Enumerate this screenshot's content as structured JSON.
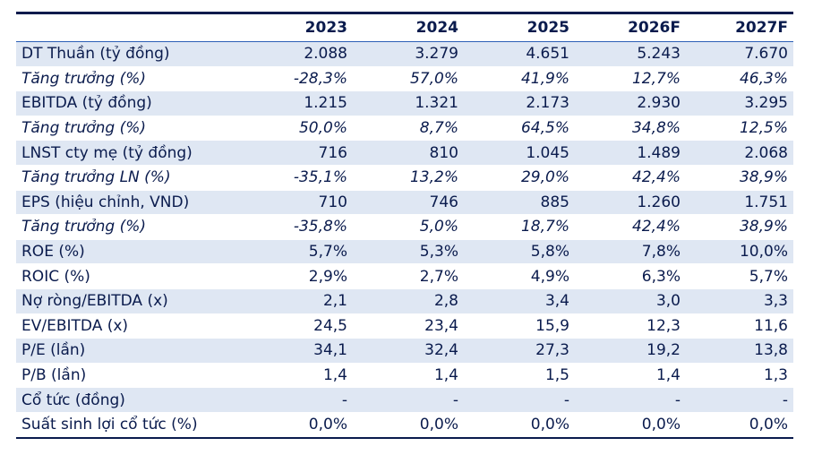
{
  "table": {
    "columns": [
      "",
      "2023",
      "2024",
      "2025",
      "2026F",
      "2027F"
    ],
    "rows": [
      {
        "label": "DT Thuần (tỷ đồng)",
        "values": [
          "2.088",
          "3.279",
          "4.651",
          "5.243",
          "7.670"
        ],
        "italic": false,
        "shaded": true
      },
      {
        "label": "Tăng trưởng (%)",
        "values": [
          "-28,3%",
          "57,0%",
          "41,9%",
          "12,7%",
          "46,3%"
        ],
        "italic": true,
        "shaded": false
      },
      {
        "label": "EBITDA (tỷ đồng)",
        "values": [
          "1.215",
          "1.321",
          "2.173",
          "2.930",
          "3.295"
        ],
        "italic": false,
        "shaded": true
      },
      {
        "label": "Tăng trưởng (%)",
        "values": [
          "50,0%",
          "8,7%",
          "64,5%",
          "34,8%",
          "12,5%"
        ],
        "italic": true,
        "shaded": false
      },
      {
        "label": "LNST cty mẹ (tỷ đồng)",
        "values": [
          "716",
          "810",
          "1.045",
          "1.489",
          "2.068"
        ],
        "italic": false,
        "shaded": true
      },
      {
        "label": "Tăng trưởng LN (%)",
        "values": [
          "-35,1%",
          "13,2%",
          "29,0%",
          "42,4%",
          "38,9%"
        ],
        "italic": true,
        "shaded": false
      },
      {
        "label": "EPS (hiệu chỉnh, VND)",
        "values": [
          "710",
          "746",
          "885",
          "1.260",
          "1.751"
        ],
        "italic": false,
        "shaded": true
      },
      {
        "label": "Tăng trưởng (%)",
        "values": [
          "-35,8%",
          "5,0%",
          "18,7%",
          "42,4%",
          "38,9%"
        ],
        "italic": true,
        "shaded": false
      },
      {
        "label": "ROE (%)",
        "values": [
          "5,7%",
          "5,3%",
          "5,8%",
          "7,8%",
          "10,0%"
        ],
        "italic": false,
        "shaded": true
      },
      {
        "label": "ROIC (%)",
        "values": [
          "2,9%",
          "2,7%",
          "4,9%",
          "6,3%",
          "5,7%"
        ],
        "italic": false,
        "shaded": false
      },
      {
        "label": "Nợ ròng/EBITDA (x)",
        "values": [
          "2,1",
          "2,8",
          "3,4",
          "3,0",
          "3,3"
        ],
        "italic": false,
        "shaded": true
      },
      {
        "label": "EV/EBITDA (x)",
        "values": [
          "24,5",
          "23,4",
          "15,9",
          "12,3",
          "11,6"
        ],
        "italic": false,
        "shaded": false
      },
      {
        "label": "P/E (lần)",
        "values": [
          "34,1",
          "32,4",
          "27,3",
          "19,2",
          "13,8"
        ],
        "italic": false,
        "shaded": true
      },
      {
        "label": "P/B (lần)",
        "values": [
          "1,4",
          "1,4",
          "1,5",
          "1,4",
          "1,3"
        ],
        "italic": false,
        "shaded": false
      },
      {
        "label": "Cổ tức (đồng)",
        "values": [
          "-",
          "-",
          "-",
          "-",
          "-"
        ],
        "italic": false,
        "shaded": true
      },
      {
        "label": "Suất sinh lợi cổ tức (%)",
        "values": [
          "0,0%",
          "0,0%",
          "0,0%",
          "0,0%",
          "0,0%"
        ],
        "italic": false,
        "shaded": false
      }
    ]
  },
  "colors": {
    "text": "#0a1b4d",
    "shade": "#dfe7f3",
    "rule": "#0a1b4d"
  }
}
